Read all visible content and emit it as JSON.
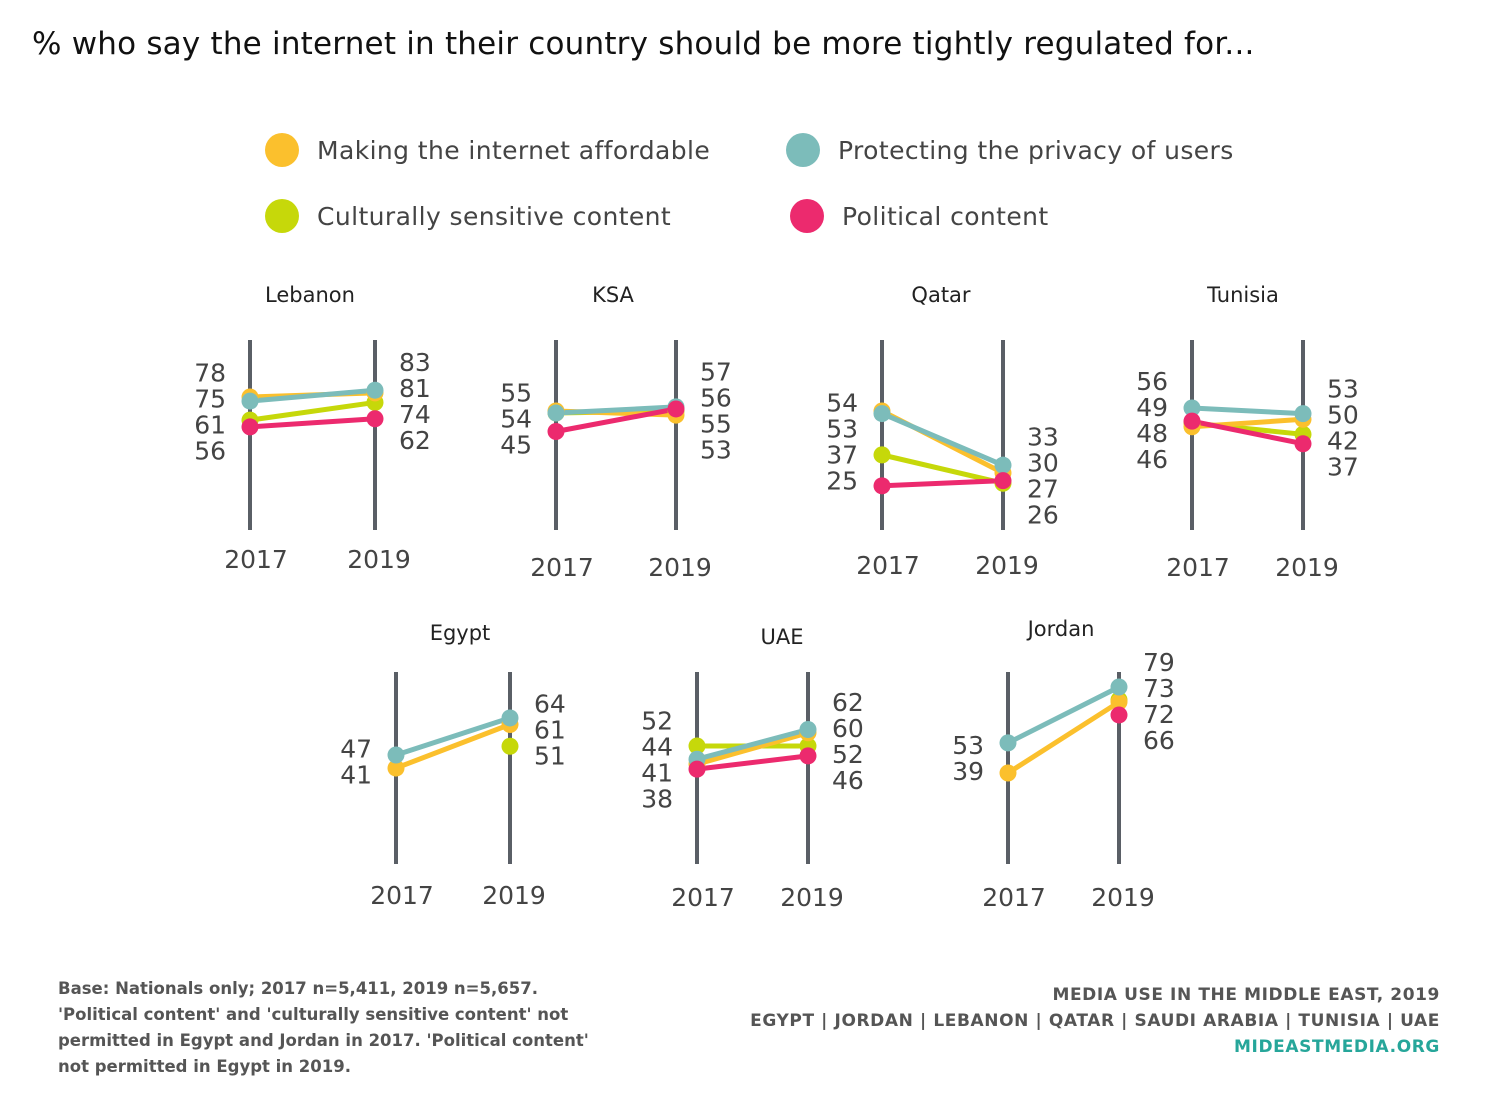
{
  "title": "% who say the internet in their country should be more tightly regulated for...",
  "legend": [
    {
      "label": "Making the internet affordable",
      "color": "#fbc02d"
    },
    {
      "label": "Protecting the privacy of users",
      "color": "#7cbcba"
    },
    {
      "label": "Culturally sensitive content",
      "color": "#c6d80a"
    },
    {
      "label": "Political content",
      "color": "#ec2a6e"
    }
  ],
  "chart_data": [
    {
      "type": "line",
      "title": "Lebanon",
      "x": [
        "2017",
        "2019"
      ],
      "series": [
        {
          "name": "Making the internet affordable",
          "values": [
            78,
            81
          ]
        },
        {
          "name": "Protecting the privacy of users",
          "values": [
            75,
            83
          ]
        },
        {
          "name": "Culturally sensitive content",
          "values": [
            61,
            74
          ]
        },
        {
          "name": "Political content",
          "values": [
            56,
            62
          ]
        }
      ],
      "labels_2017": [
        "78",
        "75",
        "61",
        "56"
      ],
      "labels_2019": [
        "83",
        "81",
        "74",
        "62"
      ]
    },
    {
      "type": "line",
      "title": "KSA",
      "x": [
        "2017",
        "2019"
      ],
      "series": [
        {
          "name": "Making the internet affordable",
          "values": [
            55,
            53
          ]
        },
        {
          "name": "Protecting the privacy of users",
          "values": [
            54,
            57
          ]
        },
        {
          "name": "Culturally sensitive content",
          "values": [
            54,
            55
          ]
        },
        {
          "name": "Political content",
          "values": [
            45,
            56
          ]
        }
      ],
      "labels_2017": [
        "55",
        "54",
        "45"
      ],
      "labels_2019": [
        "57",
        "56",
        "55",
        "53"
      ]
    },
    {
      "type": "line",
      "title": "Qatar",
      "x": [
        "2017",
        "2019"
      ],
      "series": [
        {
          "name": "Making the internet affordable",
          "values": [
            54,
            30
          ]
        },
        {
          "name": "Protecting the privacy of users",
          "values": [
            53,
            33
          ]
        },
        {
          "name": "Culturally sensitive content",
          "values": [
            37,
            26
          ]
        },
        {
          "name": "Political content",
          "values": [
            25,
            27
          ]
        }
      ],
      "labels_2017": [
        "54",
        "53",
        "37",
        "25"
      ],
      "labels_2019": [
        "33",
        "30",
        "27",
        "26"
      ]
    },
    {
      "type": "line",
      "title": "Tunisia",
      "x": [
        "2017",
        "2019"
      ],
      "series": [
        {
          "name": "Making the internet affordable",
          "values": [
            46,
            50
          ]
        },
        {
          "name": "Protecting the privacy of users",
          "values": [
            56,
            53
          ]
        },
        {
          "name": "Culturally sensitive content",
          "values": [
            48,
            42
          ]
        },
        {
          "name": "Political content",
          "values": [
            49,
            37
          ]
        }
      ],
      "labels_2017": [
        "56",
        "49",
        "48",
        "46"
      ],
      "labels_2019": [
        "53",
        "50",
        "42",
        "37"
      ]
    },
    {
      "type": "line",
      "title": "Egypt",
      "x": [
        "2017",
        "2019"
      ],
      "series": [
        {
          "name": "Making the internet affordable",
          "values": [
            41,
            61
          ]
        },
        {
          "name": "Protecting the privacy of users",
          "values": [
            47,
            64
          ]
        },
        {
          "name": "Culturally sensitive content",
          "values": [
            null,
            51
          ]
        },
        {
          "name": "Political content",
          "values": [
            null,
            null
          ]
        }
      ],
      "labels_2017": [
        "47",
        "41"
      ],
      "labels_2019": [
        "64",
        "61",
        "51"
      ]
    },
    {
      "type": "line",
      "title": "UAE",
      "x": [
        "2017",
        "2019"
      ],
      "series": [
        {
          "name": "Making the internet affordable",
          "values": [
            41,
            60
          ]
        },
        {
          "name": "Protecting the privacy of users",
          "values": [
            44,
            62
          ]
        },
        {
          "name": "Culturally sensitive content",
          "values": [
            52,
            52
          ]
        },
        {
          "name": "Political content",
          "values": [
            38,
            46
          ]
        }
      ],
      "labels_2017": [
        "52",
        "44",
        "41",
        "38"
      ],
      "labels_2019": [
        "62",
        "60",
        "52",
        "46"
      ]
    },
    {
      "type": "line",
      "title": "Jordan",
      "x": [
        "2017",
        "2019"
      ],
      "series": [
        {
          "name": "Making the internet affordable",
          "values": [
            39,
            72
          ]
        },
        {
          "name": "Protecting the privacy of users",
          "values": [
            53,
            79
          ]
        },
        {
          "name": "Culturally sensitive content",
          "values": [
            null,
            73
          ]
        },
        {
          "name": "Political content",
          "values": [
            null,
            66
          ]
        }
      ],
      "labels_2017": [
        "53",
        "39"
      ],
      "labels_2019": [
        "79",
        "73",
        "72",
        "66"
      ]
    }
  ],
  "footnote": [
    "Base: Nationals only; 2017 n=5,411, 2019 n=5,657.",
    "'Political content' and 'culturally sensitive content' not",
    "permitted in Egypt and Jordan in 2017.  'Political content'",
    "not permitted in Egypt in 2019."
  ],
  "source": {
    "line1": "MEDIA USE IN THE MIDDLE EAST, 2019",
    "line2": "EGYPT | JORDAN | LEBANON | QATAR | SAUDI ARABIA | TUNISIA | UAE",
    "site": "MIDEASTMEDIA.ORG"
  }
}
